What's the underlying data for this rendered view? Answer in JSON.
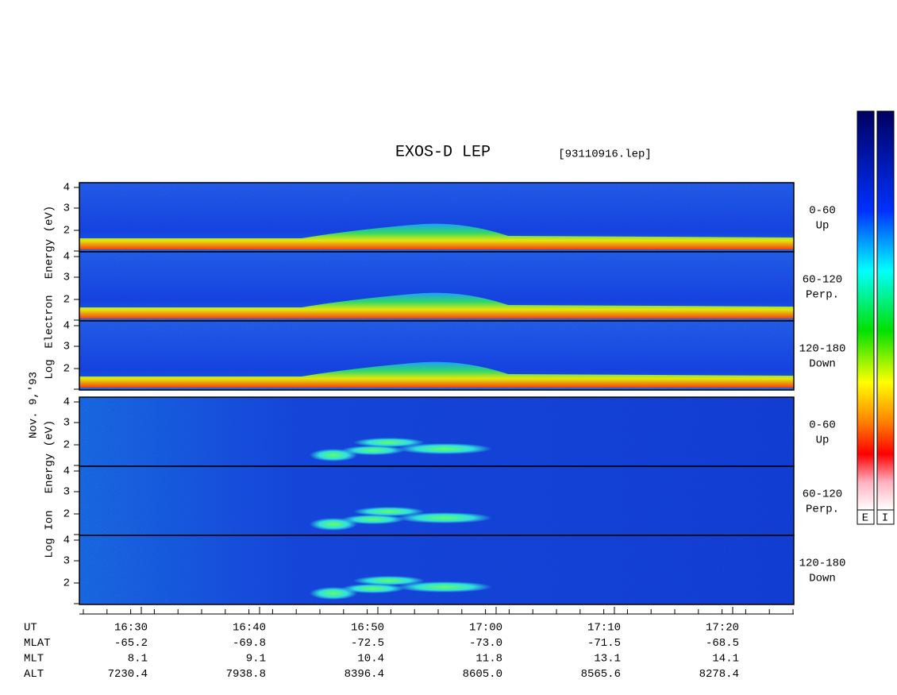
{
  "title": "EXOS-D LEP",
  "file": "[93110916.lep]",
  "date": "Nov. 9,'93",
  "electron": {
    "axis_label": [
      "Log",
      "Electron",
      "Energy (eV)"
    ],
    "panels": [
      {
        "label": [
          "0-60",
          "Up"
        ],
        "yticks": [
          "4",
          "3",
          "2"
        ]
      },
      {
        "label": [
          "60-120",
          "Perp."
        ],
        "yticks": [
          "4",
          "3",
          "2"
        ]
      },
      {
        "label": [
          "120-180",
          "Down"
        ],
        "yticks": [
          "4",
          "3",
          "2"
        ]
      }
    ]
  },
  "ion": {
    "axis_label": [
      "Log",
      "Ion",
      "Energy (eV)"
    ],
    "panels": [
      {
        "label": [
          "0-60",
          "Up"
        ],
        "yticks": [
          "4",
          "3",
          "2"
        ]
      },
      {
        "label": [
          "60-120",
          "Perp."
        ],
        "yticks": [
          "4",
          "3",
          "2"
        ]
      },
      {
        "label": [
          "120-180",
          "Down"
        ],
        "yticks": [
          "4",
          "3",
          "2"
        ]
      }
    ]
  },
  "time_axis": {
    "rows": [
      {
        "name": "UT",
        "values": [
          "16:30",
          "16:40",
          "16:50",
          "17:00",
          "17:10",
          "17:20"
        ]
      },
      {
        "name": "MLAT",
        "values": [
          "-65.2",
          "-69.8",
          "-72.5",
          "-73.0",
          "-71.5",
          "-68.5"
        ]
      },
      {
        "name": "MLT",
        "values": [
          "8.1",
          "9.1",
          "10.4",
          "11.8",
          "13.1",
          "14.1"
        ]
      },
      {
        "name": "ALT",
        "values": [
          "7230.4",
          "7938.8",
          "8396.4",
          "8605.0",
          "8565.6",
          "8278.4"
        ]
      }
    ]
  },
  "colorbars": [
    "E",
    "I"
  ]
}
